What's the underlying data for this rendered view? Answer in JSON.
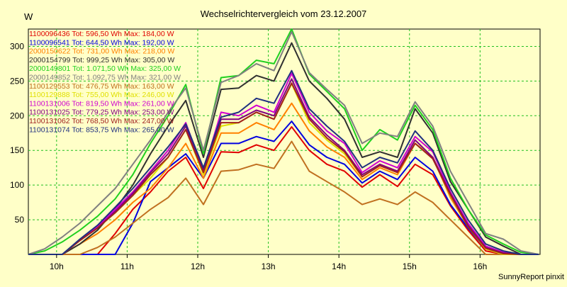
{
  "chart_data": {
    "type": "line",
    "title": "Wechselrichtervergleich vom 23.12.2007",
    "ylabel": "W",
    "xlabel": "",
    "footer": "SunnyReport pinxit",
    "ylim": [
      0,
      325
    ],
    "xlim": [
      9.6,
      16.85
    ],
    "grid": true,
    "legend_position": "top-left",
    "yticks": [
      50,
      100,
      150,
      200,
      250,
      300
    ],
    "xticks": [
      {
        "value": 10,
        "label": "10h"
      },
      {
        "value": 11,
        "label": "11h"
      },
      {
        "value": 12,
        "label": "12h"
      },
      {
        "value": 13,
        "label": "13h"
      },
      {
        "value": 14,
        "label": "14h"
      },
      {
        "value": 15,
        "label": "15h"
      },
      {
        "value": 16,
        "label": "16h"
      }
    ],
    "x": [
      9.6,
      9.83,
      10.08,
      10.33,
      10.58,
      10.83,
      11.08,
      11.33,
      11.58,
      11.83,
      12.08,
      12.33,
      12.58,
      12.83,
      13.08,
      13.33,
      13.58,
      13.83,
      14.08,
      14.33,
      14.58,
      14.83,
      15.08,
      15.33,
      15.58,
      15.83,
      16.08,
      16.33,
      16.58,
      16.83
    ],
    "series": [
      {
        "name": "1100096436",
        "legend": "1100096436 Tot: 596,50 Wh Max: 184,00 W",
        "color": "#e00000",
        "values": [
          0,
          0,
          0,
          0,
          0,
          30,
          65,
          90,
          120,
          140,
          95,
          148,
          147,
          158,
          150,
          184,
          150,
          130,
          120,
          97,
          115,
          98,
          130,
          115,
          70,
          35,
          5,
          0,
          0,
          0
        ]
      },
      {
        "name": "1100096541",
        "legend": "1100096541 Tot: 644,50 Wh Max: 192,00 W",
        "color": "#0000e0",
        "values": [
          0,
          0,
          0,
          0,
          0,
          0,
          45,
          105,
          125,
          145,
          110,
          160,
          160,
          170,
          163,
          192,
          158,
          140,
          130,
          103,
          120,
          108,
          140,
          120,
          72,
          38,
          8,
          0,
          0,
          0
        ]
      },
      {
        "name": "2000150622",
        "legend": "2000150622 Tot: 731,00 Wh Max: 218,00 W",
        "color": "#ff8000",
        "values": [
          0,
          0,
          0,
          15,
          30,
          50,
          75,
          95,
          125,
          160,
          110,
          175,
          175,
          190,
          180,
          218,
          178,
          155,
          140,
          108,
          125,
          115,
          160,
          140,
          82,
          40,
          8,
          0,
          0,
          0
        ]
      },
      {
        "name": "2000154799",
        "legend": "2000154799 Tot: 999,25 Wh Max: 305,00 W",
        "color": "#303030",
        "values": [
          0,
          0,
          0,
          15,
          35,
          65,
          100,
          145,
          185,
          222,
          140,
          238,
          240,
          258,
          250,
          305,
          250,
          225,
          195,
          140,
          148,
          140,
          210,
          175,
          105,
          65,
          25,
          12,
          0,
          0
        ]
      },
      {
        "name": "2000149801",
        "legend": "2000149801 Tot: 1.071,50 Wh Max: 325,00 W",
        "color": "#20d020",
        "values": [
          0,
          5,
          18,
          35,
          55,
          80,
          115,
          160,
          200,
          245,
          145,
          255,
          258,
          280,
          275,
          325,
          260,
          235,
          210,
          150,
          180,
          165,
          215,
          180,
          110,
          65,
          28,
          15,
          3,
          0
        ]
      },
      {
        "name": "2000149852",
        "legend": "2000149852 Tot: 1.092,75 Wh Max: 321,00 W",
        "color": "#808080",
        "values": [
          0,
          8,
          25,
          45,
          70,
          95,
          130,
          165,
          205,
          240,
          150,
          248,
          258,
          275,
          265,
          321,
          262,
          238,
          215,
          160,
          175,
          170,
          220,
          185,
          120,
          75,
          30,
          22,
          5,
          0
        ]
      },
      {
        "name": "1100129553",
        "legend": "1100129553 Tot: 476,75 Wh Max: 163,00 W",
        "color": "#c07020",
        "values": [
          0,
          0,
          0,
          0,
          10,
          25,
          45,
          65,
          82,
          110,
          72,
          120,
          122,
          130,
          124,
          163,
          120,
          105,
          90,
          72,
          80,
          72,
          90,
          75,
          50,
          25,
          0,
          0,
          0,
          0
        ]
      },
      {
        "name": "1100129888",
        "legend": "1100129888 Tot: 755,00 Wh Max: 246,00 W",
        "color": "#e0e000",
        "values": [
          0,
          0,
          0,
          20,
          40,
          60,
          85,
          110,
          140,
          180,
          115,
          185,
          190,
          205,
          195,
          246,
          190,
          165,
          145,
          112,
          130,
          118,
          160,
          140,
          85,
          40,
          8,
          0,
          0,
          0
        ]
      },
      {
        "name": "1100131006",
        "legend": "1100131006 Tot: 819,50 Wh Max: 261,00 W",
        "color": "#d000d0",
        "values": [
          0,
          0,
          0,
          20,
          40,
          65,
          90,
          120,
          150,
          190,
          120,
          205,
          200,
          215,
          205,
          261,
          205,
          178,
          160,
          118,
          135,
          125,
          170,
          148,
          90,
          45,
          12,
          3,
          0,
          0
        ]
      },
      {
        "name": "1100131025",
        "legend": "1100131025 Tot: 779,25 Wh Max: 253,00 W",
        "color": "#800080",
        "values": [
          0,
          0,
          0,
          20,
          38,
          62,
          88,
          118,
          145,
          185,
          122,
          195,
          195,
          208,
          200,
          253,
          198,
          172,
          150,
          115,
          130,
          120,
          165,
          140,
          88,
          42,
          10,
          2,
          0,
          0
        ]
      },
      {
        "name": "1100131062",
        "legend": "1100131062 Tot: 768,50 Wh Max: 247,00 W",
        "color": "#a02020",
        "values": [
          0,
          0,
          0,
          20,
          38,
          60,
          85,
          115,
          140,
          180,
          118,
          190,
          190,
          205,
          195,
          247,
          195,
          168,
          148,
          112,
          128,
          118,
          160,
          138,
          86,
          40,
          9,
          1,
          0,
          0
        ]
      },
      {
        "name": "1100131074",
        "legend": "1100131074 Tot: 853,75 Wh Max: 265,00 W",
        "color": "#203080",
        "values": [
          0,
          0,
          0,
          22,
          42,
          68,
          95,
          125,
          155,
          188,
          125,
          198,
          205,
          225,
          218,
          265,
          210,
          185,
          163,
          125,
          140,
          132,
          178,
          150,
          95,
          50,
          15,
          5,
          0,
          0
        ]
      }
    ]
  }
}
